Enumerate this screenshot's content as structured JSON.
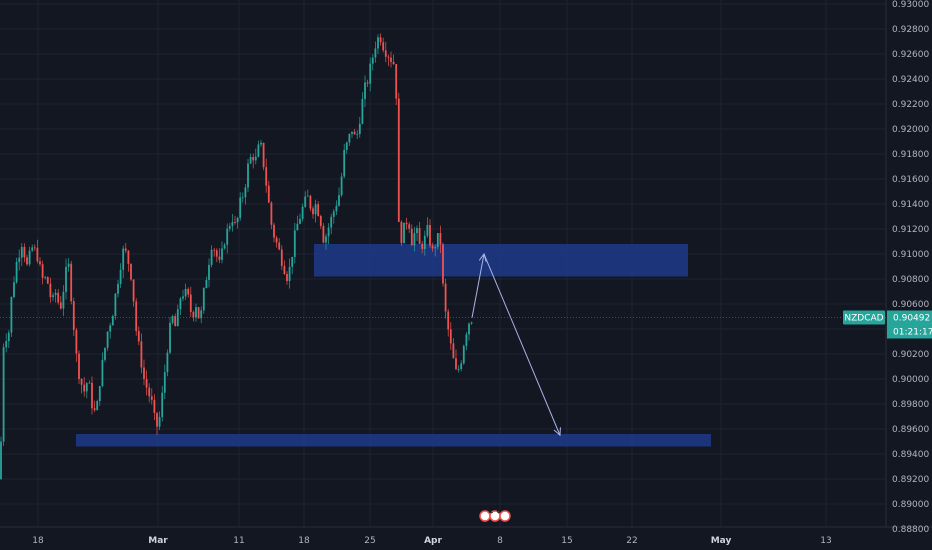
{
  "chart_data": {
    "type": "candlestick",
    "symbol": "NZDCAD",
    "last_price": "0.90492",
    "countdown": "01:21:17",
    "price_axis_labels": [
      "0.93000",
      "0.92800",
      "0.92600",
      "0.92400",
      "0.92200",
      "0.92000",
      "0.91800",
      "0.91600",
      "0.91400",
      "0.91200",
      "0.91000",
      "0.90800",
      "0.90600",
      "0.90400",
      "0.90200",
      "0.90000",
      "0.89800",
      "0.89600",
      "0.89400",
      "0.89200",
      "0.89000",
      "0.88800"
    ],
    "time_axis_labels": [
      {
        "text": "18",
        "bold": false
      },
      {
        "text": "Mar",
        "bold": true
      },
      {
        "text": "11",
        "bold": false
      },
      {
        "text": "18",
        "bold": false
      },
      {
        "text": "25",
        "bold": false
      },
      {
        "text": "Apr",
        "bold": true
      },
      {
        "text": "8",
        "bold": false
      },
      {
        "text": "15",
        "bold": false
      },
      {
        "text": "22",
        "bold": false
      },
      {
        "text": "May",
        "bold": true
      },
      {
        "text": "13",
        "bold": false
      }
    ],
    "event_badge": "2 6",
    "ylim": [
      0.888,
      0.93
    ],
    "close_path": [
      [
        0,
        0.892
      ],
      [
        4,
        0.904
      ],
      [
        8,
        0.903
      ],
      [
        12,
        0.907
      ],
      [
        17,
        0.9095
      ],
      [
        22,
        0.911
      ],
      [
        27,
        0.909
      ],
      [
        32,
        0.9105
      ],
      [
        37,
        0.91
      ],
      [
        42,
        0.908
      ],
      [
        47,
        0.908
      ],
      [
        52,
        0.906
      ],
      [
        56,
        0.907
      ],
      [
        60,
        0.9055
      ],
      [
        64,
        0.9075
      ],
      [
        68,
        0.9095
      ],
      [
        72,
        0.906
      ],
      [
        76,
        0.902
      ],
      [
        80,
        0.9
      ],
      [
        84,
        0.899
      ],
      [
        88,
        0.9
      ],
      [
        92,
        0.898
      ],
      [
        96,
        0.897
      ],
      [
        100,
        0.9
      ],
      [
        104,
        0.902
      ],
      [
        108,
        0.904
      ],
      [
        112,
        0.905
      ],
      [
        116,
        0.907
      ],
      [
        120,
        0.909
      ],
      [
        124,
        0.9105
      ],
      [
        128,
        0.9095
      ],
      [
        132,
        0.908
      ],
      [
        136,
        0.904
      ],
      [
        140,
        0.902
      ],
      [
        144,
        0.9
      ],
      [
        148,
        0.899
      ],
      [
        152,
        0.898
      ],
      [
        156,
        0.896
      ],
      [
        160,
        0.897
      ],
      [
        164,
        0.9
      ],
      [
        168,
        0.903
      ],
      [
        172,
        0.905
      ],
      [
        176,
        0.904
      ],
      [
        180,
        0.9065
      ],
      [
        184,
        0.907
      ],
      [
        188,
        0.9065
      ],
      [
        192,
        0.905
      ],
      [
        196,
        0.906
      ],
      [
        200,
        0.9045
      ],
      [
        204,
        0.907
      ],
      [
        208,
        0.909
      ],
      [
        212,
        0.911
      ],
      [
        216,
        0.91
      ],
      [
        220,
        0.909
      ],
      [
        224,
        0.911
      ],
      [
        228,
        0.912
      ],
      [
        232,
        0.913
      ],
      [
        236,
        0.912
      ],
      [
        240,
        0.914
      ],
      [
        244,
        0.915
      ],
      [
        248,
        0.917
      ],
      [
        252,
        0.918
      ],
      [
        256,
        0.9175
      ],
      [
        260,
        0.919
      ],
      [
        264,
        0.917
      ],
      [
        268,
        0.9145
      ],
      [
        272,
        0.912
      ],
      [
        276,
        0.911
      ],
      [
        280,
        0.91
      ],
      [
        284,
        0.909
      ],
      [
        288,
        0.908
      ],
      [
        292,
        0.91
      ],
      [
        296,
        0.912
      ],
      [
        300,
        0.913
      ],
      [
        304,
        0.914
      ],
      [
        308,
        0.9145
      ],
      [
        312,
        0.9135
      ],
      [
        316,
        0.914
      ],
      [
        320,
        0.913
      ],
      [
        324,
        0.911
      ],
      [
        328,
        0.912
      ],
      [
        332,
        0.913
      ],
      [
        336,
        0.914
      ],
      [
        340,
        0.915
      ],
      [
        344,
        0.918
      ],
      [
        348,
        0.919
      ],
      [
        352,
        0.92
      ],
      [
        356,
        0.919
      ],
      [
        360,
        0.921
      ],
      [
        364,
        0.923
      ],
      [
        368,
        0.924
      ],
      [
        372,
        0.9255
      ],
      [
        376,
        0.927
      ],
      [
        380,
        0.9275
      ],
      [
        384,
        0.9265
      ],
      [
        388,
        0.926
      ],
      [
        392,
        0.9255
      ],
      [
        396,
        0.925
      ],
      [
        397,
        0.914
      ],
      [
        400,
        0.911
      ],
      [
        404,
        0.912
      ],
      [
        408,
        0.913
      ],
      [
        412,
        0.911
      ],
      [
        416,
        0.912
      ],
      [
        420,
        0.9105
      ],
      [
        424,
        0.911
      ],
      [
        428,
        0.912
      ],
      [
        432,
        0.91
      ],
      [
        436,
        0.911
      ],
      [
        440,
        0.9115
      ],
      [
        444,
        0.906
      ],
      [
        448,
        0.904
      ],
      [
        452,
        0.902
      ],
      [
        456,
        0.9005
      ],
      [
        460,
        0.901
      ],
      [
        464,
        0.903
      ],
      [
        468,
        0.9045
      ],
      [
        472,
        0.9049
      ]
    ],
    "zones": [
      {
        "x0": 314,
        "x1": 688,
        "y0": 0.9108,
        "y1": 0.9082
      },
      {
        "x0": 76,
        "x1": 711,
        "y0": 0.8956,
        "y1": 0.8946
      }
    ],
    "arrows": [
      {
        "from": [
          472,
          0.9049
        ],
        "to": [
          484,
          0.91
        ]
      },
      {
        "from": [
          484,
          0.91
        ],
        "to": [
          560,
          0.8955
        ]
      }
    ]
  },
  "colors": {
    "background": "#131722",
    "grid": "#1f2330",
    "up": "#26a69a",
    "down": "#ef5350",
    "zone": "#1d3a8a",
    "arrow": "#aab4e6",
    "axis_text": "#b2b5be",
    "price_label_bg": "#26a69a"
  }
}
